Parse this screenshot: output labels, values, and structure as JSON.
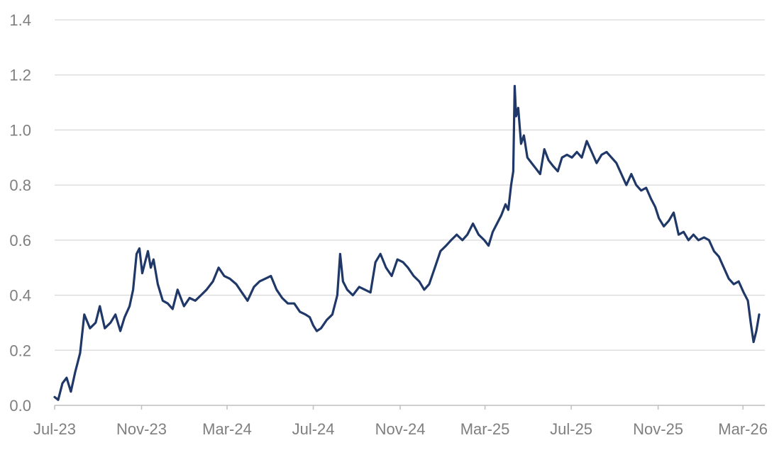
{
  "chart_data": {
    "type": "line",
    "title": "",
    "xlabel": "",
    "ylabel": "",
    "ylim": [
      0,
      1.4
    ],
    "yticks": [
      "0.0",
      "0.2",
      "0.4",
      "0.6",
      "0.8",
      "1.0",
      "1.2",
      "1.4"
    ],
    "xticks": [
      "Jul-23",
      "Nov-23",
      "Mar-24",
      "Jul-24",
      "Nov-24",
      "Mar-25",
      "Jul-25",
      "Nov-25",
      "Mar-26"
    ],
    "x_range": [
      "2023-07",
      "2026-04"
    ],
    "grid": true,
    "legend": "none",
    "series": [
      {
        "color": "#1f3868",
        "points": [
          [
            "2023-07-01",
            0.03
          ],
          [
            "2023-07-06",
            0.02
          ],
          [
            "2023-07-12",
            0.08
          ],
          [
            "2023-07-18",
            0.1
          ],
          [
            "2023-07-24",
            0.05
          ],
          [
            "2023-07-30",
            0.12
          ],
          [
            "2023-08-06",
            0.19
          ],
          [
            "2023-08-12",
            0.33
          ],
          [
            "2023-08-20",
            0.28
          ],
          [
            "2023-08-28",
            0.3
          ],
          [
            "2023-09-03",
            0.36
          ],
          [
            "2023-09-10",
            0.28
          ],
          [
            "2023-09-18",
            0.3
          ],
          [
            "2023-09-25",
            0.33
          ],
          [
            "2023-10-02",
            0.27
          ],
          [
            "2023-10-08",
            0.32
          ],
          [
            "2023-10-15",
            0.36
          ],
          [
            "2023-10-20",
            0.42
          ],
          [
            "2023-10-25",
            0.55
          ],
          [
            "2023-10-29",
            0.57
          ],
          [
            "2023-11-02",
            0.48
          ],
          [
            "2023-11-06",
            0.52
          ],
          [
            "2023-11-10",
            0.56
          ],
          [
            "2023-11-14",
            0.5
          ],
          [
            "2023-11-18",
            0.53
          ],
          [
            "2023-11-24",
            0.44
          ],
          [
            "2023-12-01",
            0.38
          ],
          [
            "2023-12-08",
            0.37
          ],
          [
            "2023-12-15",
            0.35
          ],
          [
            "2023-12-22",
            0.42
          ],
          [
            "2023-12-31",
            0.36
          ],
          [
            "2024-01-08",
            0.39
          ],
          [
            "2024-01-16",
            0.38
          ],
          [
            "2024-01-24",
            0.4
          ],
          [
            "2024-02-01",
            0.42
          ],
          [
            "2024-02-10",
            0.45
          ],
          [
            "2024-02-18",
            0.5
          ],
          [
            "2024-02-26",
            0.47
          ],
          [
            "2024-03-05",
            0.46
          ],
          [
            "2024-03-14",
            0.44
          ],
          [
            "2024-03-22",
            0.41
          ],
          [
            "2024-03-30",
            0.38
          ],
          [
            "2024-04-08",
            0.43
          ],
          [
            "2024-04-16",
            0.45
          ],
          [
            "2024-04-24",
            0.46
          ],
          [
            "2024-05-02",
            0.47
          ],
          [
            "2024-05-10",
            0.42
          ],
          [
            "2024-05-18",
            0.39
          ],
          [
            "2024-05-26",
            0.37
          ],
          [
            "2024-06-04",
            0.37
          ],
          [
            "2024-06-12",
            0.34
          ],
          [
            "2024-06-20",
            0.33
          ],
          [
            "2024-06-26",
            0.32
          ],
          [
            "2024-07-01",
            0.29
          ],
          [
            "2024-07-06",
            0.27
          ],
          [
            "2024-07-12",
            0.28
          ],
          [
            "2024-07-20",
            0.31
          ],
          [
            "2024-07-28",
            0.33
          ],
          [
            "2024-08-04",
            0.4
          ],
          [
            "2024-08-08",
            0.55
          ],
          [
            "2024-08-12",
            0.45
          ],
          [
            "2024-08-18",
            0.42
          ],
          [
            "2024-08-26",
            0.4
          ],
          [
            "2024-09-04",
            0.43
          ],
          [
            "2024-09-12",
            0.42
          ],
          [
            "2024-09-20",
            0.41
          ],
          [
            "2024-09-27",
            0.52
          ],
          [
            "2024-10-04",
            0.55
          ],
          [
            "2024-10-12",
            0.5
          ],
          [
            "2024-10-20",
            0.47
          ],
          [
            "2024-10-28",
            0.53
          ],
          [
            "2024-11-05",
            0.52
          ],
          [
            "2024-11-12",
            0.5
          ],
          [
            "2024-11-20",
            0.47
          ],
          [
            "2024-11-28",
            0.45
          ],
          [
            "2024-12-05",
            0.42
          ],
          [
            "2024-12-12",
            0.44
          ],
          [
            "2024-12-20",
            0.5
          ],
          [
            "2024-12-28",
            0.56
          ],
          [
            "2025-01-05",
            0.58
          ],
          [
            "2025-01-12",
            0.6
          ],
          [
            "2025-01-20",
            0.62
          ],
          [
            "2025-01-28",
            0.6
          ],
          [
            "2025-02-04",
            0.62
          ],
          [
            "2025-02-12",
            0.66
          ],
          [
            "2025-02-20",
            0.62
          ],
          [
            "2025-02-28",
            0.6
          ],
          [
            "2025-03-06",
            0.58
          ],
          [
            "2025-03-12",
            0.63
          ],
          [
            "2025-03-18",
            0.66
          ],
          [
            "2025-03-24",
            0.69
          ],
          [
            "2025-03-30",
            0.73
          ],
          [
            "2025-04-03",
            0.71
          ],
          [
            "2025-04-07",
            0.8
          ],
          [
            "2025-04-10",
            0.85
          ],
          [
            "2025-04-12",
            1.16
          ],
          [
            "2025-04-14",
            1.05
          ],
          [
            "2025-04-17",
            1.08
          ],
          [
            "2025-04-21",
            0.95
          ],
          [
            "2025-04-25",
            0.98
          ],
          [
            "2025-04-30",
            0.9
          ],
          [
            "2025-05-06",
            0.88
          ],
          [
            "2025-05-12",
            0.86
          ],
          [
            "2025-05-18",
            0.84
          ],
          [
            "2025-05-24",
            0.93
          ],
          [
            "2025-05-30",
            0.89
          ],
          [
            "2025-06-05",
            0.87
          ],
          [
            "2025-06-12",
            0.85
          ],
          [
            "2025-06-18",
            0.9
          ],
          [
            "2025-06-25",
            0.91
          ],
          [
            "2025-07-02",
            0.9
          ],
          [
            "2025-07-09",
            0.92
          ],
          [
            "2025-07-16",
            0.9
          ],
          [
            "2025-07-23",
            0.96
          ],
          [
            "2025-07-30",
            0.92
          ],
          [
            "2025-08-06",
            0.88
          ],
          [
            "2025-08-13",
            0.91
          ],
          [
            "2025-08-20",
            0.92
          ],
          [
            "2025-08-27",
            0.9
          ],
          [
            "2025-09-03",
            0.88
          ],
          [
            "2025-09-10",
            0.84
          ],
          [
            "2025-09-17",
            0.8
          ],
          [
            "2025-09-24",
            0.84
          ],
          [
            "2025-10-01",
            0.8
          ],
          [
            "2025-10-08",
            0.78
          ],
          [
            "2025-10-15",
            0.79
          ],
          [
            "2025-10-22",
            0.75
          ],
          [
            "2025-10-28",
            0.72
          ],
          [
            "2025-11-02",
            0.68
          ],
          [
            "2025-11-09",
            0.65
          ],
          [
            "2025-11-16",
            0.67
          ],
          [
            "2025-11-23",
            0.7
          ],
          [
            "2025-11-30",
            0.62
          ],
          [
            "2025-12-07",
            0.63
          ],
          [
            "2025-12-14",
            0.6
          ],
          [
            "2025-12-21",
            0.62
          ],
          [
            "2025-12-28",
            0.6
          ],
          [
            "2026-01-05",
            0.61
          ],
          [
            "2026-01-12",
            0.6
          ],
          [
            "2026-01-19",
            0.56
          ],
          [
            "2026-01-26",
            0.54
          ],
          [
            "2026-02-02",
            0.5
          ],
          [
            "2026-02-09",
            0.46
          ],
          [
            "2026-02-16",
            0.44
          ],
          [
            "2026-02-23",
            0.45
          ],
          [
            "2026-03-02",
            0.41
          ],
          [
            "2026-03-08",
            0.38
          ],
          [
            "2026-03-12",
            0.3
          ],
          [
            "2026-03-16",
            0.23
          ],
          [
            "2026-03-20",
            0.27
          ],
          [
            "2026-03-24",
            0.33
          ]
        ]
      }
    ]
  }
}
